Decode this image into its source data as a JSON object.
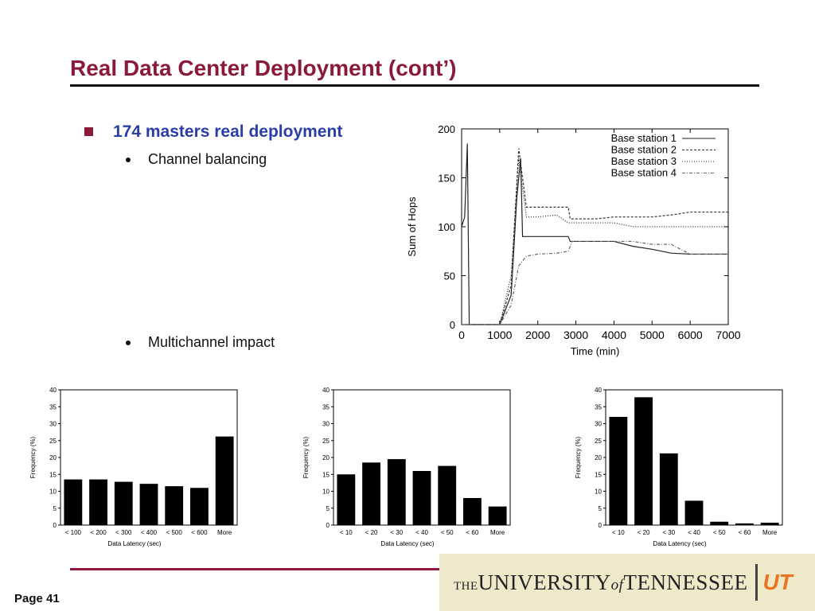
{
  "slide": {
    "title": "Real Data Center Deployment (cont’)",
    "bullet_main": "174 masters real deployment",
    "sub1": "Channel balancing",
    "sub2": "Multichannel impact",
    "page": "Page 41",
    "logo": {
      "the": "THE",
      "university": "UNIVERSITY",
      "of": "of",
      "state": "TENNESSEE",
      "ut": "UT"
    },
    "colors": {
      "title": "#8b1a3a",
      "bullet": "#2a3ea8",
      "accent": "#8b1a3a",
      "logo_bg": "#efe9c9",
      "logo_ut": "#e87722"
    }
  },
  "chart_data": [
    {
      "type": "line",
      "xlabel": "Time (min)",
      "ylabel": "Sum of Hops",
      "xlim": [
        0,
        7000
      ],
      "ylim": [
        0,
        200
      ],
      "xticks": [
        0,
        1000,
        2000,
        3000,
        4000,
        5000,
        6000,
        7000
      ],
      "yticks": [
        0,
        50,
        100,
        150,
        200
      ],
      "grid": false,
      "legend": "top-right",
      "series": [
        {
          "name": "Base station 1",
          "style": "solid",
          "x": [
            0,
            80,
            150,
            200,
            1000,
            1300,
            1450,
            1550,
            1600,
            1700,
            2000,
            2500,
            2800,
            2850,
            3500,
            4000,
            4500,
            5000,
            5500,
            6000,
            7000
          ],
          "y": [
            100,
            110,
            185,
            0,
            0,
            30,
            130,
            170,
            90,
            90,
            90,
            90,
            90,
            85,
            85,
            85,
            80,
            77,
            73,
            72,
            72
          ]
        },
        {
          "name": "Base station 2",
          "style": "dashed",
          "x": [
            0,
            200,
            1000,
            1300,
            1500,
            1700,
            1800,
            2000,
            2500,
            2800,
            2850,
            3500,
            4000,
            4500,
            5000,
            5500,
            6000,
            7000
          ],
          "y": [
            0,
            0,
            0,
            40,
            180,
            120,
            120,
            120,
            120,
            120,
            108,
            108,
            110,
            110,
            110,
            112,
            115,
            115
          ]
        },
        {
          "name": "Base station 3",
          "style": "dotted",
          "x": [
            0,
            200,
            1000,
            1300,
            1500,
            1700,
            2000,
            2500,
            2800,
            3500,
            4000,
            4500,
            5000,
            5500,
            6000,
            7000
          ],
          "y": [
            0,
            0,
            0,
            50,
            170,
            110,
            110,
            112,
            104,
            104,
            104,
            100,
            100,
            100,
            100,
            100
          ]
        },
        {
          "name": "Base station 4",
          "style": "dashdot",
          "x": [
            0,
            200,
            1000,
            1300,
            1500,
            1700,
            2000,
            2500,
            2800,
            2900,
            3500,
            4000,
            4500,
            5000,
            5500,
            6000,
            7000
          ],
          "y": [
            0,
            0,
            0,
            20,
            60,
            70,
            72,
            73,
            75,
            85,
            85,
            85,
            85,
            82,
            82,
            72,
            72
          ]
        }
      ]
    },
    {
      "type": "bar",
      "categories": [
        "< 100",
        "< 200",
        "< 300",
        "< 400",
        "< 500",
        "< 600",
        "More"
      ],
      "values": [
        13.5,
        13.5,
        12.8,
        12.2,
        11.5,
        11,
        26.2
      ],
      "xlabel": "Data Latency (sec)",
      "ylabel": "Frequency (%)",
      "ylim": [
        0,
        40
      ],
      "yticks": [
        0,
        5,
        10,
        15,
        20,
        25,
        30,
        35,
        40
      ]
    },
    {
      "type": "bar",
      "categories": [
        "< 10",
        "< 20",
        "< 30",
        "< 40",
        "< 50",
        "< 60",
        "More"
      ],
      "values": [
        15,
        18.5,
        19.5,
        16,
        17.5,
        8,
        5.5
      ],
      "xlabel": "Data Latency (sec)",
      "ylabel": "Frequency (%)",
      "ylim": [
        0,
        40
      ],
      "yticks": [
        0,
        5,
        10,
        15,
        20,
        25,
        30,
        35,
        40
      ]
    },
    {
      "type": "bar",
      "categories": [
        "< 10",
        "< 20",
        "< 30",
        "< 40",
        "< 50",
        "< 60",
        "More"
      ],
      "values": [
        32,
        37.8,
        21.2,
        7.2,
        1,
        0.5,
        0.7
      ],
      "xlabel": "Data Latency (sec)",
      "ylabel": "Frequency (%)",
      "ylim": [
        0,
        40
      ],
      "yticks": [
        0,
        5,
        10,
        15,
        20,
        25,
        30,
        35,
        40
      ]
    }
  ]
}
